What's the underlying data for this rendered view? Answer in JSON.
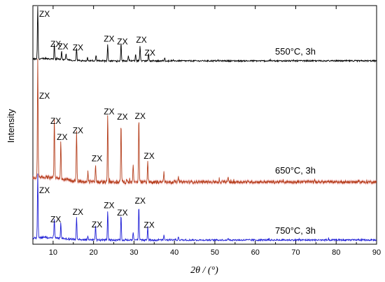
{
  "chart_data": {
    "type": "line",
    "title": "",
    "xlabel": "2θ / (°)",
    "ylabel": "Intensity",
    "xlim": [
      5,
      90
    ],
    "xticks": [
      "10",
      "20",
      "30",
      "40",
      "50",
      "60",
      "70",
      "80",
      "90"
    ],
    "yticks": "none",
    "grid": false,
    "legend": "none",
    "peak_label_text": "ZX",
    "series": [
      {
        "name": "550°C, 3h",
        "color": "#000000",
        "baseline": 0.0,
        "peaks": [
          {
            "x": 6.2,
            "y": 1.0,
            "labeled": true
          },
          {
            "x": 10.3,
            "y": 0.28,
            "labeled": true
          },
          {
            "x": 12.1,
            "y": 0.16,
            "labeled": true
          },
          {
            "x": 13.2,
            "y": 0.12,
            "labeled": false
          },
          {
            "x": 15.8,
            "y": 0.22,
            "labeled": true
          },
          {
            "x": 18.5,
            "y": 0.06,
            "labeled": false
          },
          {
            "x": 20.6,
            "y": 0.09,
            "labeled": false
          },
          {
            "x": 23.5,
            "y": 0.3,
            "labeled": true
          },
          {
            "x": 26.8,
            "y": 0.33,
            "labeled": true
          },
          {
            "x": 28.6,
            "y": 0.1,
            "labeled": false
          },
          {
            "x": 30.4,
            "y": 0.12,
            "labeled": false
          },
          {
            "x": 31.5,
            "y": 0.28,
            "labeled": true
          },
          {
            "x": 33.6,
            "y": 0.12,
            "labeled": true
          },
          {
            "x": 37.6,
            "y": 0.05,
            "labeled": false
          }
        ]
      },
      {
        "name": "650°C, 3h",
        "color": "#b5401e",
        "band_color": "#f3b3b6",
        "baseline": 0.0,
        "peaks": [
          {
            "x": 6.2,
            "y": 1.0,
            "labeled": true
          },
          {
            "x": 10.3,
            "y": 0.5,
            "labeled": true
          },
          {
            "x": 11.9,
            "y": 0.33,
            "labeled": true
          },
          {
            "x": 15.8,
            "y": 0.42,
            "labeled": true
          },
          {
            "x": 18.6,
            "y": 0.08,
            "labeled": false
          },
          {
            "x": 20.5,
            "y": 0.15,
            "labeled": true
          },
          {
            "x": 23.5,
            "y": 0.58,
            "labeled": true
          },
          {
            "x": 26.8,
            "y": 0.5,
            "labeled": true
          },
          {
            "x": 29.8,
            "y": 0.14,
            "labeled": false
          },
          {
            "x": 31.2,
            "y": 0.54,
            "labeled": true
          },
          {
            "x": 33.4,
            "y": 0.17,
            "labeled": true
          },
          {
            "x": 37.4,
            "y": 0.08,
            "labeled": false
          },
          {
            "x": 41.0,
            "y": 0.04,
            "labeled": false
          },
          {
            "x": 53.3,
            "y": 0.04,
            "labeled": false
          }
        ]
      },
      {
        "name": "750°C, 3h",
        "color": "#1f1fd6",
        "baseline": 0.0,
        "peaks": [
          {
            "x": 6.2,
            "y": 1.0,
            "labeled": true
          },
          {
            "x": 10.3,
            "y": 0.3,
            "labeled": true
          },
          {
            "x": 11.9,
            "y": 0.24,
            "labeled": false
          },
          {
            "x": 15.8,
            "y": 0.35,
            "labeled": true
          },
          {
            "x": 18.6,
            "y": 0.07,
            "labeled": false
          },
          {
            "x": 20.5,
            "y": 0.22,
            "labeled": true
          },
          {
            "x": 23.5,
            "y": 0.45,
            "labeled": true
          },
          {
            "x": 26.8,
            "y": 0.4,
            "labeled": true
          },
          {
            "x": 29.8,
            "y": 0.12,
            "labeled": false
          },
          {
            "x": 31.2,
            "y": 0.52,
            "labeled": true
          },
          {
            "x": 33.4,
            "y": 0.21,
            "labeled": true
          },
          {
            "x": 37.4,
            "y": 0.07,
            "labeled": false
          },
          {
            "x": 41.0,
            "y": 0.05,
            "labeled": false
          },
          {
            "x": 53.3,
            "y": 0.03,
            "labeled": false
          }
        ]
      }
    ]
  }
}
